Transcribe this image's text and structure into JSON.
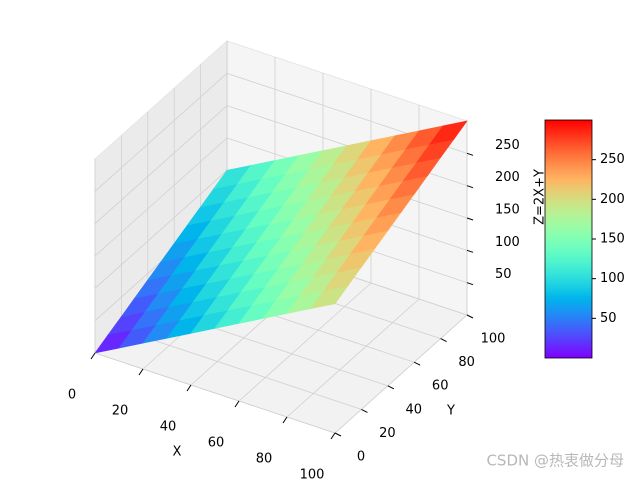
{
  "chart_data": {
    "type": "surface3d",
    "xlabel": "X",
    "ylabel": "Y",
    "zlabel": "Z=2X+Y",
    "x": [
      0,
      10,
      20,
      30,
      40,
      50,
      60,
      70,
      80,
      90,
      100
    ],
    "y": [
      0,
      10,
      20,
      30,
      40,
      50,
      60,
      70,
      80,
      90,
      100
    ],
    "z": [
      [
        0,
        20,
        40,
        60,
        80,
        100,
        120,
        140,
        160,
        180,
        200
      ],
      [
        10,
        30,
        50,
        70,
        90,
        110,
        130,
        150,
        170,
        190,
        210
      ],
      [
        20,
        40,
        60,
        80,
        100,
        120,
        140,
        160,
        180,
        200,
        220
      ],
      [
        30,
        50,
        70,
        90,
        110,
        130,
        150,
        170,
        190,
        210,
        230
      ],
      [
        40,
        60,
        80,
        100,
        120,
        140,
        160,
        180,
        200,
        220,
        240
      ],
      [
        50,
        70,
        90,
        110,
        130,
        150,
        170,
        190,
        210,
        230,
        250
      ],
      [
        60,
        80,
        100,
        120,
        140,
        160,
        180,
        200,
        220,
        240,
        260
      ],
      [
        70,
        90,
        110,
        130,
        150,
        170,
        190,
        210,
        230,
        250,
        270
      ],
      [
        80,
        100,
        120,
        140,
        160,
        180,
        200,
        220,
        240,
        260,
        280
      ],
      [
        90,
        110,
        130,
        150,
        170,
        190,
        210,
        230,
        250,
        270,
        290
      ],
      [
        100,
        120,
        140,
        160,
        180,
        200,
        220,
        240,
        260,
        280,
        300
      ]
    ],
    "colormap": "rainbow",
    "xlim": [
      0,
      100
    ],
    "ylim": [
      0,
      100
    ],
    "zlim": [
      0,
      300
    ],
    "xticks": [
      0,
      20,
      40,
      60,
      80,
      100
    ],
    "yticks": [
      0,
      20,
      40,
      60,
      80,
      100
    ],
    "zticks": [
      50,
      100,
      150,
      200,
      250
    ],
    "clim": [
      0,
      300
    ],
    "colorbar_ticks": [
      50,
      100,
      150,
      200,
      250
    ],
    "grid": true
  },
  "watermark": "CSDN @热衷做分母"
}
